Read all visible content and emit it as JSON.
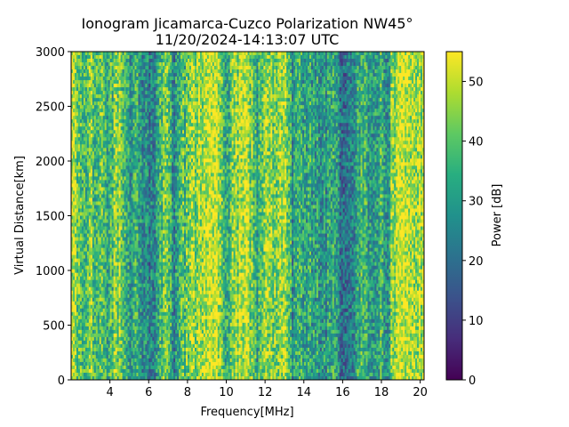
{
  "chart_data": {
    "type": "heatmap",
    "title": "Ionogram Jicamarca-Cuzco Polarization NW45°",
    "subtitle": "11/20/2024-14:13:07 UTC",
    "xlabel": "Frequency[MHz]",
    "ylabel": "Virtual Distance[km]",
    "colorbar_label": "Power [dB]",
    "colormap": "viridis",
    "xlim": [
      2.0,
      20.2
    ],
    "ylim": [
      0,
      3000
    ],
    "clim": [
      0,
      55
    ],
    "x_ticks": [
      4,
      6,
      8,
      10,
      12,
      14,
      16,
      18,
      20
    ],
    "y_ticks": [
      0,
      500,
      1000,
      1500,
      2000,
      2500,
      3000
    ],
    "colorbar_ticks": [
      0,
      10,
      20,
      30,
      40,
      50
    ],
    "grid": false,
    "column_profile": {
      "frequency_mhz": [
        2.0,
        2.3,
        2.6,
        3.0,
        3.3,
        3.6,
        4.0,
        4.2,
        4.5,
        5.0,
        5.3,
        5.7,
        6.0,
        6.3,
        6.7,
        7.0,
        7.3,
        7.6,
        8.0,
        8.5,
        9.0,
        9.5,
        10.0,
        10.4,
        10.8,
        11.2,
        11.6,
        12.0,
        12.5,
        13.0,
        13.4,
        13.6,
        14.0,
        14.5,
        15.0,
        15.5,
        16.0,
        16.5,
        17.0,
        17.5,
        18.0,
        18.3,
        18.6,
        19.0,
        19.5,
        20.2
      ],
      "median_power_db": [
        48,
        44,
        38,
        46,
        35,
        40,
        34,
        42,
        44,
        30,
        36,
        26,
        22,
        28,
        38,
        44,
        26,
        36,
        40,
        46,
        48,
        50,
        34,
        44,
        50,
        46,
        32,
        48,
        44,
        50,
        28,
        36,
        30,
        34,
        28,
        32,
        22,
        26,
        36,
        28,
        36,
        24,
        48,
        50,
        49,
        48
      ]
    }
  }
}
